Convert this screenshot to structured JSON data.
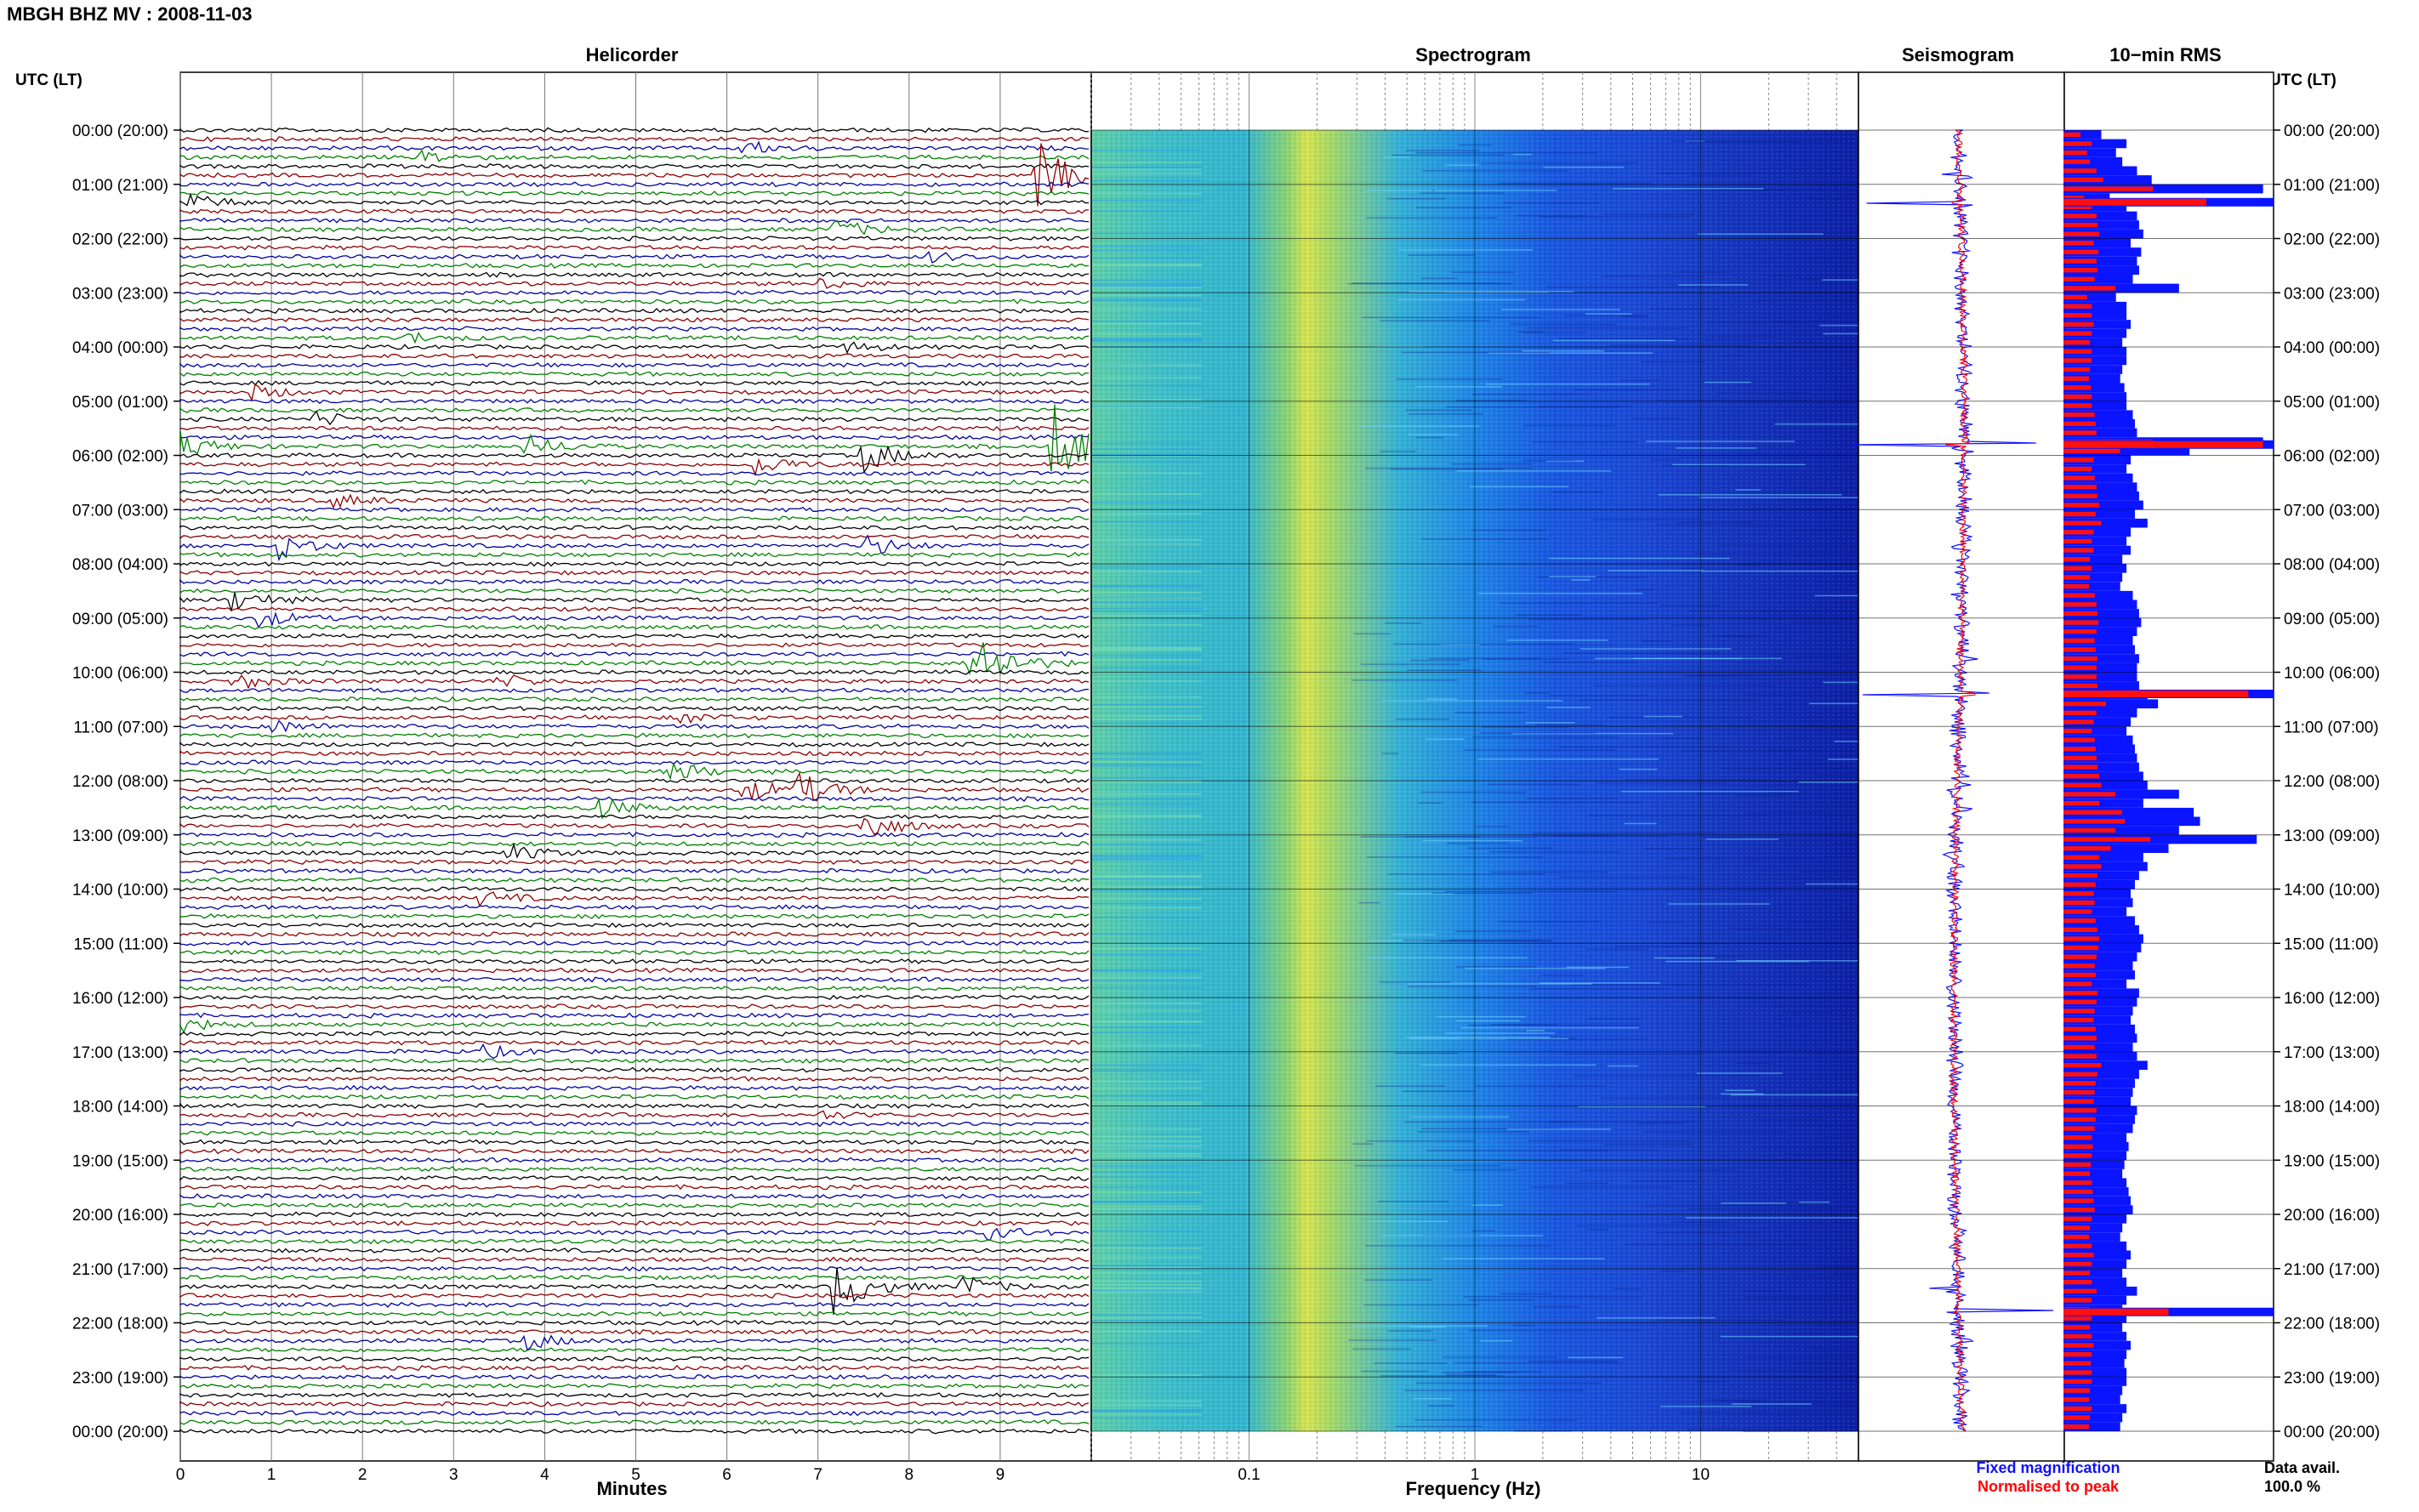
{
  "header": {
    "station_title": "MBGH BHZ MV : 2008-11-03"
  },
  "chart_data": {
    "type": "composite",
    "panels": {
      "helicorder": {
        "title": "Helicorder",
        "xlabel": "Minutes",
        "xlim": [
          0,
          10
        ],
        "xticks": [
          "0",
          "1",
          "2",
          "3",
          "4",
          "5",
          "6",
          "7",
          "8",
          "9"
        ]
      },
      "spectrogram": {
        "title": "Spectrogram",
        "xlabel": "Frequency (Hz)",
        "xscale": "log",
        "xlim": [
          0.02,
          50
        ],
        "xticks": [
          "0.1",
          "1",
          "10"
        ]
      },
      "seismogram": {
        "title": "Seismogram",
        "legend": [
          {
            "label": "Fixed magnification",
            "color": "#1010ff"
          },
          {
            "label": "Normalised to peak",
            "color": "#ff0000"
          }
        ]
      },
      "rms": {
        "title": "10−min RMS"
      }
    },
    "y_axis": {
      "label": "UTC (LT)",
      "ticks": [
        "00:00 (20:00)",
        "01:00 (21:00)",
        "02:00 (22:00)",
        "03:00 (23:00)",
        "04:00 (00:00)",
        "05:00 (01:00)",
        "06:00 (02:00)",
        "07:00 (03:00)",
        "08:00 (04:00)",
        "09:00 (05:00)",
        "10:00 (06:00)",
        "11:00 (07:00)",
        "12:00 (08:00)",
        "13:00 (09:00)",
        "14:00 (10:00)",
        "15:00 (11:00)",
        "16:00 (12:00)",
        "17:00 (13:00)",
        "18:00 (14:00)",
        "19:00 (15:00)",
        "20:00 (16:00)",
        "21:00 (17:00)",
        "22:00 (18:00)",
        "23:00 (19:00)",
        "00:00 (20:00)"
      ]
    },
    "helicorder_colors": [
      "#000000",
      "#8b0000",
      "#0000a0",
      "#008000"
    ],
    "events": [
      {
        "t_hr": 0.3,
        "min": 6.2,
        "amp": 0.5
      },
      {
        "t_hr": 0.5,
        "min": 2.7,
        "amp": 0.4
      },
      {
        "t_hr": 0.85,
        "min": 9.4,
        "amp": 2.6
      },
      {
        "t_hr": 1.4,
        "min": 0.1,
        "amp": 0.6
      },
      {
        "t_hr": 1.85,
        "min": 7.2,
        "amp": 0.7
      },
      {
        "t_hr": 2.3,
        "min": 8.2,
        "amp": 0.4
      },
      {
        "t_hr": 2.9,
        "min": 7.0,
        "amp": 0.4
      },
      {
        "t_hr": 3.8,
        "min": 2.5,
        "amp": 0.4
      },
      {
        "t_hr": 4.0,
        "min": 7.3,
        "amp": 0.4
      },
      {
        "t_hr": 4.8,
        "min": 0.8,
        "amp": 0.5
      },
      {
        "t_hr": 5.3,
        "min": 1.5,
        "amp": 0.5
      },
      {
        "t_hr": 5.8,
        "min": 9.6,
        "amp": 3.2
      },
      {
        "t_hr": 5.85,
        "min": 0.0,
        "amp": 0.9
      },
      {
        "t_hr": 5.9,
        "min": 3.8,
        "amp": 0.8
      },
      {
        "t_hr": 5.95,
        "min": 7.5,
        "amp": 1.2
      },
      {
        "t_hr": 6.1,
        "min": 6.3,
        "amp": 0.8
      },
      {
        "t_hr": 6.8,
        "min": 1.7,
        "amp": 0.5
      },
      {
        "t_hr": 7.6,
        "min": 1.1,
        "amp": 0.9
      },
      {
        "t_hr": 7.7,
        "min": 7.5,
        "amp": 0.9
      },
      {
        "t_hr": 8.6,
        "min": 0.6,
        "amp": 0.8
      },
      {
        "t_hr": 9.0,
        "min": 0.9,
        "amp": 0.6
      },
      {
        "t_hr": 9.8,
        "min": 8.7,
        "amp": 2.7
      },
      {
        "t_hr": 10.2,
        "min": 0.6,
        "amp": 0.6
      },
      {
        "t_hr": 10.1,
        "min": 3.5,
        "amp": 0.5
      },
      {
        "t_hr": 10.8,
        "min": 5.5,
        "amp": 0.4
      },
      {
        "t_hr": 11.0,
        "min": 1.0,
        "amp": 0.5
      },
      {
        "t_hr": 11.9,
        "min": 5.4,
        "amp": 0.7
      },
      {
        "t_hr": 12.1,
        "min": 6.2,
        "amp": 0.9
      },
      {
        "t_hr": 12.2,
        "min": 6.8,
        "amp": 1.1
      },
      {
        "t_hr": 12.55,
        "min": 4.5,
        "amp": 1.0
      },
      {
        "t_hr": 12.75,
        "min": 7.5,
        "amp": 1.1
      },
      {
        "t_hr": 13.4,
        "min": 3.6,
        "amp": 0.6
      },
      {
        "t_hr": 14.1,
        "min": 3.3,
        "amp": 0.5
      },
      {
        "t_hr": 16.5,
        "min": 0.0,
        "amp": 0.5
      },
      {
        "t_hr": 17.0,
        "min": 3.3,
        "amp": 0.5
      },
      {
        "t_hr": 18.2,
        "min": 7.0,
        "amp": 0.3
      },
      {
        "t_hr": 20.3,
        "min": 8.9,
        "amp": 0.5
      },
      {
        "t_hr": 21.4,
        "min": 7.2,
        "amp": 2.0
      },
      {
        "t_hr": 21.35,
        "min": 8.6,
        "amp": 0.8
      },
      {
        "t_hr": 22.3,
        "min": 3.8,
        "amp": 0.6
      }
    ],
    "rms_bars_blue_rel": [
      0.18,
      0.3,
      0.25,
      0.28,
      0.35,
      0.42,
      0.95,
      0.22,
      0.3,
      0.35,
      0.36,
      0.38,
      0.32,
      0.37,
      0.35,
      0.36,
      0.33,
      0.55,
      0.25,
      0.3,
      0.3,
      0.32,
      0.3,
      0.28,
      0.3,
      0.3,
      0.28,
      0.27,
      0.29,
      0.3,
      0.3,
      0.33,
      0.34,
      0.35,
      0.95,
      0.6,
      0.32,
      0.3,
      0.33,
      0.35,
      0.36,
      0.38,
      0.34,
      0.4,
      0.32,
      0.3,
      0.32,
      0.28,
      0.3,
      0.28,
      0.27,
      0.33,
      0.35,
      0.36,
      0.37,
      0.35,
      0.33,
      0.34,
      0.36,
      0.35,
      0.35,
      0.36,
      0.4,
      0.45,
      0.35,
      0.32,
      0.3,
      0.33,
      0.34,
      0.35,
      0.36,
      0.38,
      0.4,
      0.55,
      0.38,
      0.62,
      0.65,
      0.55,
      0.92,
      0.5,
      0.38,
      0.4,
      0.36,
      0.34,
      0.32,
      0.33,
      0.3,
      0.34,
      0.36,
      0.38,
      0.37,
      0.35,
      0.33,
      0.34,
      0.3,
      0.36,
      0.35,
      0.33,
      0.32,
      0.34,
      0.35,
      0.33,
      0.35,
      0.4,
      0.36,
      0.34,
      0.33,
      0.32,
      0.35,
      0.34,
      0.33,
      0.3,
      0.31,
      0.3,
      0.29,
      0.28,
      0.3,
      0.31,
      0.32,
      0.33,
      0.3,
      0.28,
      0.27,
      0.3,
      0.32,
      0.3,
      0.28,
      0.3,
      0.35,
      0.3,
      0.28,
      0.3,
      0.28,
      0.3,
      0.32,
      0.3,
      0.29,
      0.3,
      0.3,
      0.28,
      0.27,
      0.3,
      0.28,
      0.27
    ],
    "rms_big_spikes": [
      {
        "t_hr": 1.33,
        "blue": 1.0,
        "red": 0.68
      },
      {
        "t_hr": 5.8,
        "blue": 1.0,
        "red": 0.95
      },
      {
        "t_hr": 10.4,
        "blue": 1.0,
        "red": 0.88
      },
      {
        "t_hr": 21.8,
        "blue": 1.0,
        "red": 0.5
      }
    ],
    "footer": {
      "data_avail_label": "Data avail.",
      "data_avail_value": "100.0 %"
    }
  }
}
